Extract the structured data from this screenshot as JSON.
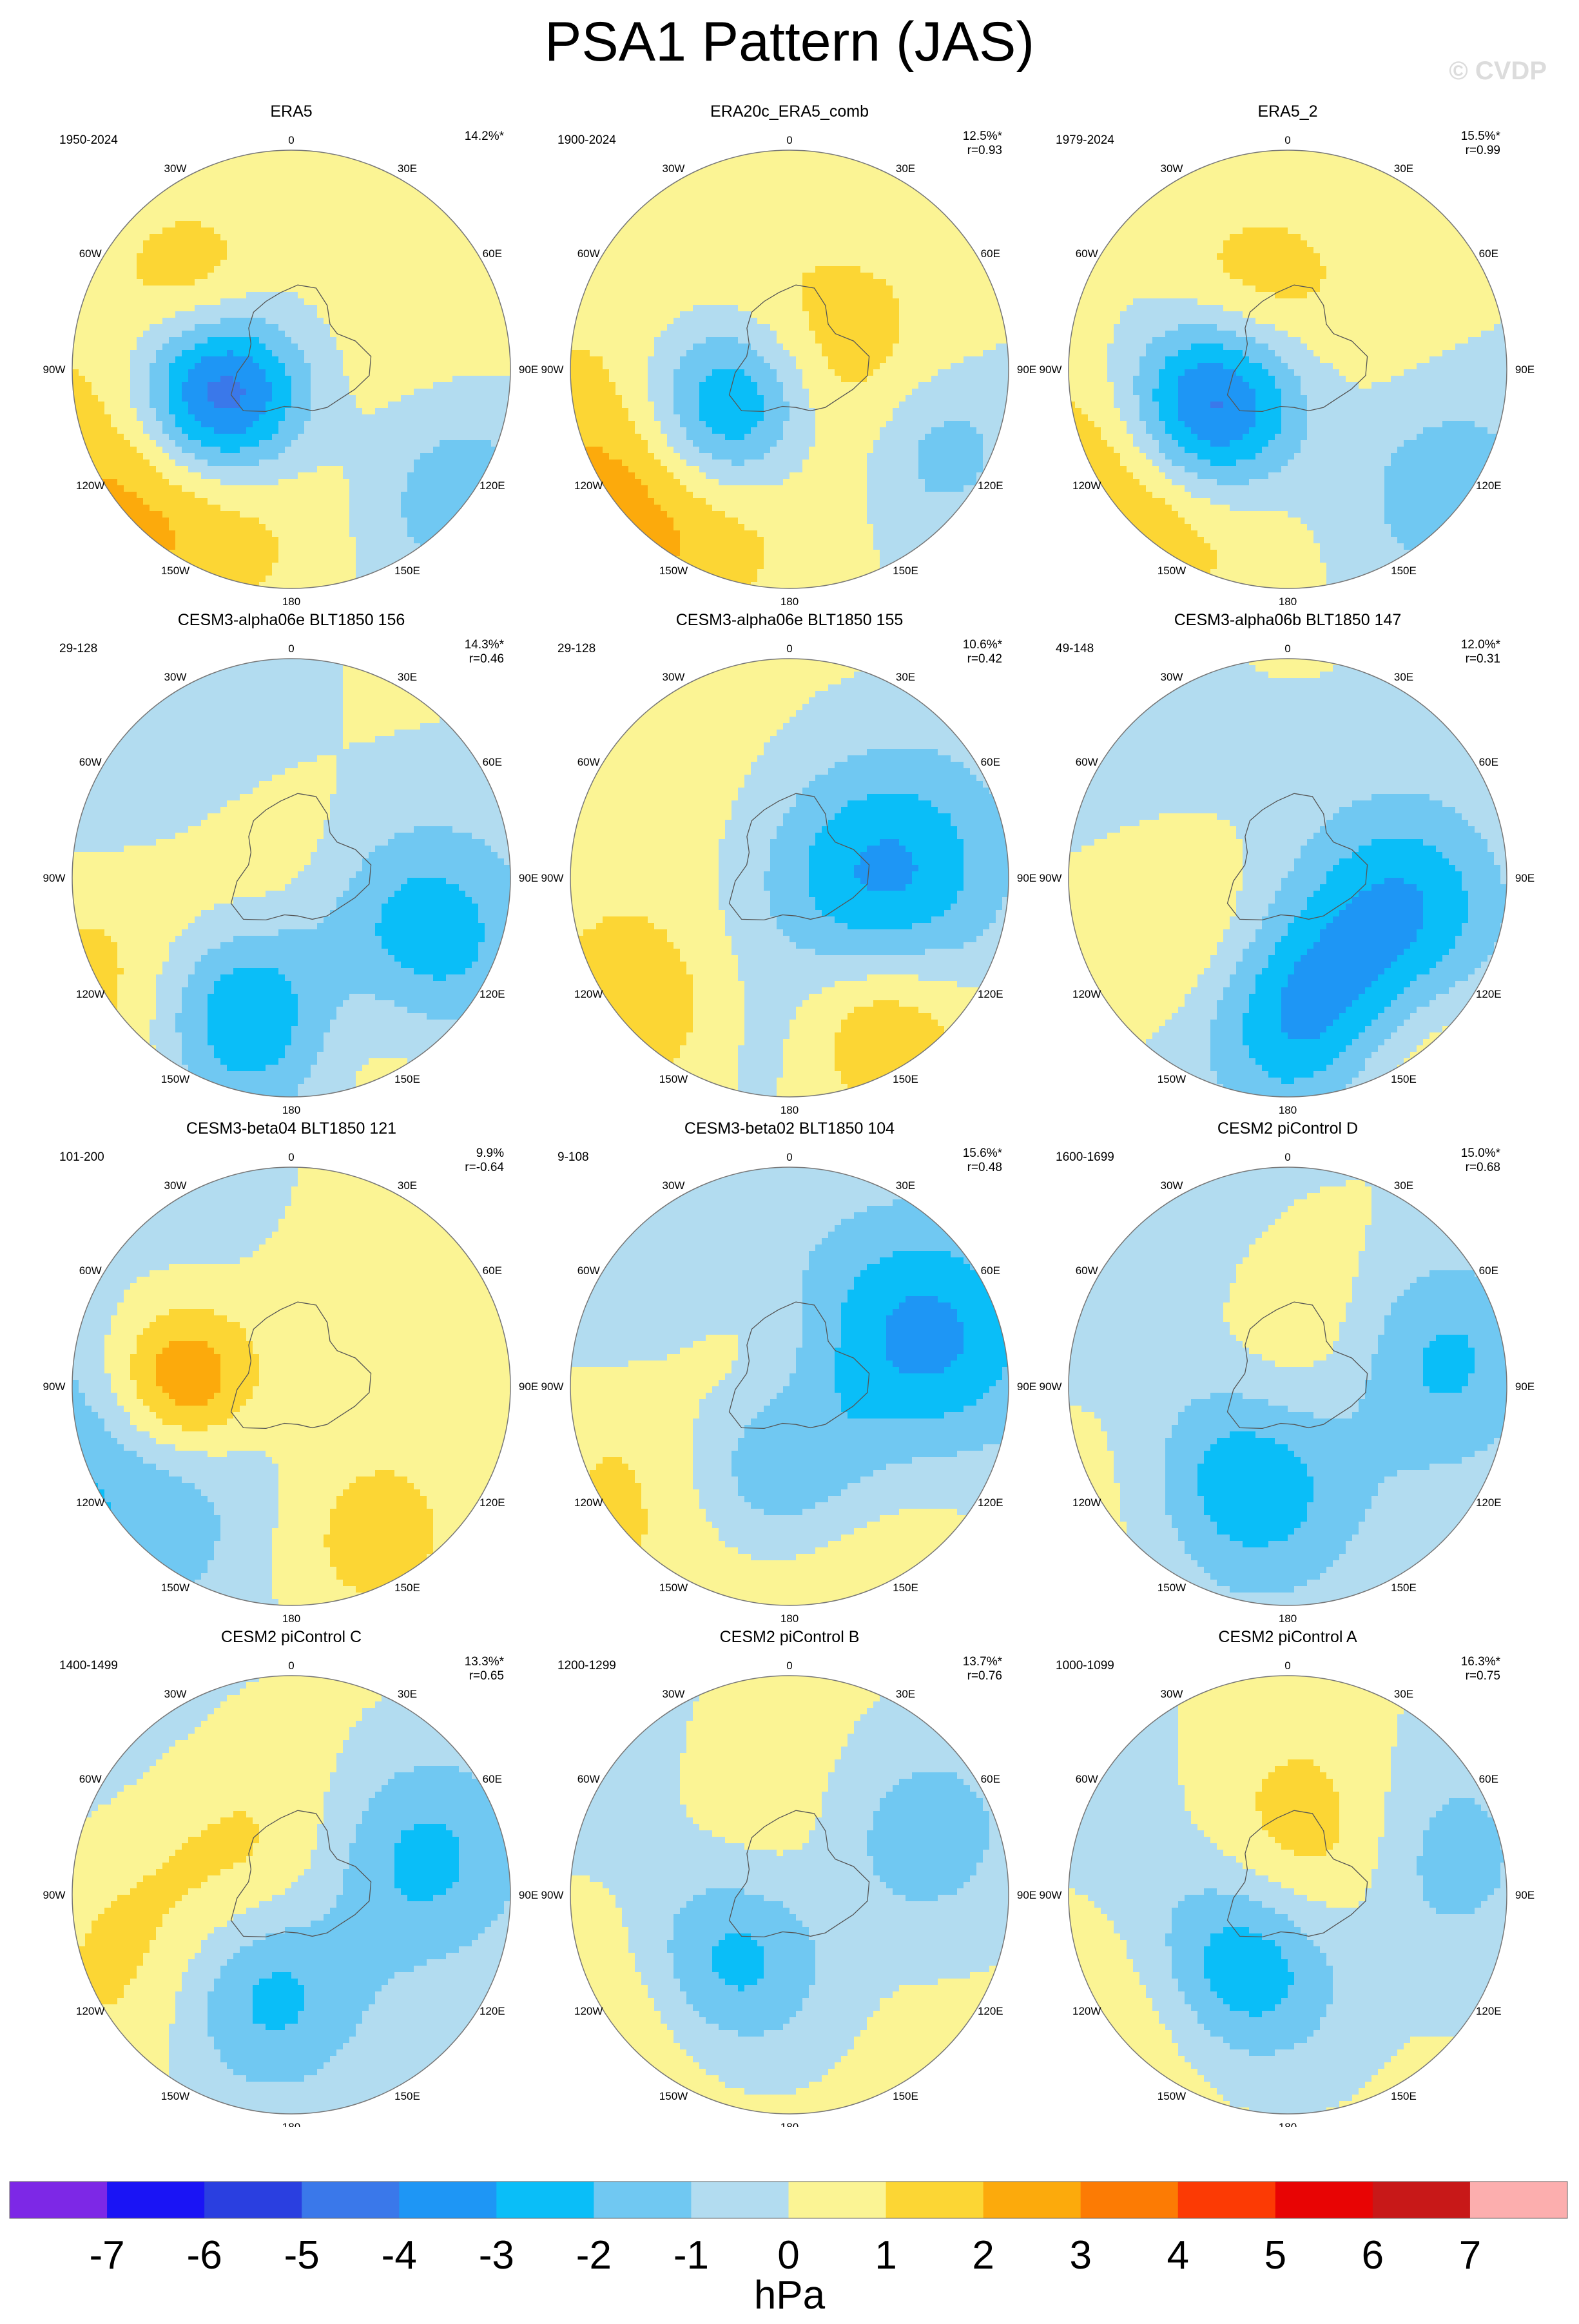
{
  "title": "PSA1 Pattern (JAS)",
  "watermark": "© CVDP",
  "colorbar": {
    "unit": "hPa",
    "tick_labels": [
      "-7",
      "-6",
      "-5",
      "-4",
      "-3",
      "-2",
      "-1",
      "0",
      "1",
      "2",
      "3",
      "4",
      "5",
      "6",
      "7"
    ],
    "colors": [
      "#7d28e6",
      "#1a14f5",
      "#2a3fe0",
      "#3a78ea",
      "#1e96f5",
      "#0abef8",
      "#70c8f2",
      "#b2dcf0",
      "#fbf494",
      "#fcd634",
      "#fcaa0c",
      "#fc7b04",
      "#fc3a04",
      "#e80404",
      "#c81818",
      "#fcaeae"
    ]
  },
  "chart_data": {
    "type": "heatmap",
    "description_units": "hPa",
    "levels": [
      -7,
      -6,
      -5,
      -4,
      -3,
      -2,
      -1,
      0,
      1,
      2,
      3,
      4,
      5,
      6,
      7
    ],
    "map_labels": {
      "longitudes": [
        "0",
        "30E",
        "60E",
        "90E",
        "120E",
        "150E",
        "180",
        "150W",
        "120W",
        "90W",
        "60W",
        "30W"
      ]
    },
    "panels": [
      {
        "title": "ERA5",
        "years": "1950-2024",
        "pct": "14.2%*",
        "r": ""
      },
      {
        "title": "ERA20c_ERA5_comb",
        "years": "1900-2024",
        "pct": "12.5%*",
        "r": "r=0.93"
      },
      {
        "title": "ERA5_2",
        "years": "1979-2024",
        "pct": "15.5%*",
        "r": "r=0.99"
      },
      {
        "title": "CESM3-alpha06e BLT1850 156",
        "years": "29-128",
        "pct": "14.3%*",
        "r": "r=0.46"
      },
      {
        "title": "CESM3-alpha06e BLT1850 155",
        "years": "29-128",
        "pct": "10.6%*",
        "r": "r=0.42"
      },
      {
        "title": "CESM3-alpha06b BLT1850 147",
        "years": "49-148",
        "pct": "12.0%*",
        "r": "r=0.31"
      },
      {
        "title": "CESM3-beta04 BLT1850 121",
        "years": "101-200",
        "pct": "9.9%",
        "r": "r=-0.64"
      },
      {
        "title": "CESM3-beta02 BLT1850 104",
        "years": "9-108",
        "pct": "15.6%*",
        "r": "r=0.48"
      },
      {
        "title": "CESM2 piControl D",
        "years": "1600-1699",
        "pct": "15.0%*",
        "r": "r=0.68"
      },
      {
        "title": "CESM2 piControl C",
        "years": "1400-1499",
        "pct": "13.3%*",
        "r": "r=0.65"
      },
      {
        "title": "CESM2 piControl B",
        "years": "1200-1299",
        "pct": "13.7%*",
        "r": "r=0.76"
      },
      {
        "title": "CESM2 piControl A",
        "years": "1000-1099",
        "pct": "16.3%*",
        "r": "r=0.75"
      }
    ]
  }
}
